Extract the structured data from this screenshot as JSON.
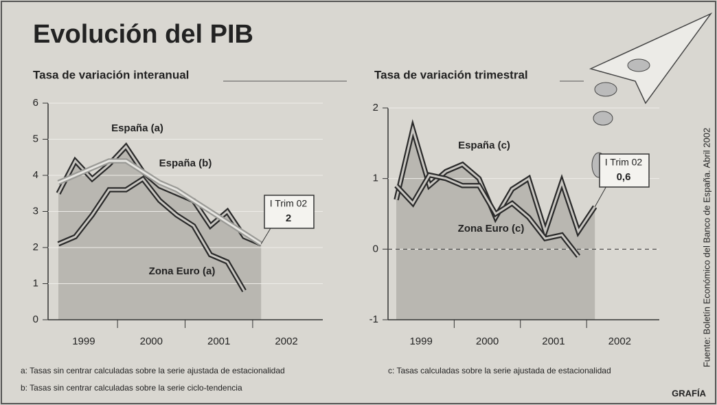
{
  "title": "Evolución del PIB",
  "source": "Fuente: Boletín Económico del Banco de España. Abril 2002",
  "credit": "GRAFÍA",
  "chart_data": [
    {
      "type": "line",
      "title": "Tasa de variación interanual",
      "categories": [
        null,
        null,
        null,
        null,
        null,
        null,
        null,
        null,
        null,
        null,
        null,
        null,
        null
      ],
      "year_labels": [
        "1999",
        "2000",
        "2001",
        "2002"
      ],
      "series": [
        {
          "name": "España (a)",
          "color": "#2a2a2a",
          "values": [
            3.5,
            4.4,
            3.9,
            4.3,
            4.8,
            4.1,
            3.7,
            3.5,
            3.3,
            2.6,
            3.0,
            2.3,
            2.1
          ]
        },
        {
          "name": "España (b)",
          "color": "#9a9a96",
          "values": [
            3.8,
            4.0,
            4.2,
            4.4,
            4.4,
            4.1,
            3.8,
            3.6,
            3.3,
            3.0,
            2.7,
            2.4,
            2.1
          ]
        },
        {
          "name": "Zona Euro (a)",
          "color": "#2a2a2a",
          "values": [
            2.1,
            2.3,
            2.9,
            3.6,
            3.6,
            3.9,
            3.3,
            2.9,
            2.6,
            1.8,
            1.6,
            0.8,
            null
          ]
        }
      ],
      "ylim": [
        0,
        6
      ],
      "yticks": [
        0,
        1,
        2,
        3,
        4,
        5,
        6
      ],
      "grid": true,
      "annotation": {
        "label": "I Trim 02",
        "value": "2"
      },
      "notes": [
        "a: Tasas sin centrar calculadas sobre la serie ajustada de estacionalidad",
        "b: Tasas sin centrar calculadas sobre la serie ciclo-tendencia"
      ]
    },
    {
      "type": "line",
      "title": "Tasa de variación trimestral",
      "categories": [
        null,
        null,
        null,
        null,
        null,
        null,
        null,
        null,
        null,
        null,
        null,
        null,
        null
      ],
      "year_labels": [
        "1999",
        "2000",
        "2001",
        "2002"
      ],
      "series": [
        {
          "name": "España (c)",
          "color": "#2a2a2a",
          "values": [
            0.7,
            1.7,
            0.9,
            1.1,
            1.2,
            1.0,
            0.45,
            0.85,
            1.0,
            0.25,
            0.95,
            0.25,
            0.6
          ]
        },
        {
          "name": "Zona Euro (c)",
          "color": "#2a2a2a",
          "values": [
            0.9,
            0.65,
            1.05,
            1.0,
            0.9,
            0.9,
            0.5,
            0.65,
            0.45,
            0.15,
            0.2,
            -0.1,
            null
          ]
        }
      ],
      "ylim": [
        -1,
        2
      ],
      "yticks": [
        -1,
        0,
        1,
        2
      ],
      "grid": true,
      "zero_line": true,
      "annotation": {
        "label": "I Trim 02",
        "value": "0,6"
      },
      "notes": [
        "c: Tasas calculadas sobre la serie ajustada de estacionalidad"
      ]
    }
  ]
}
